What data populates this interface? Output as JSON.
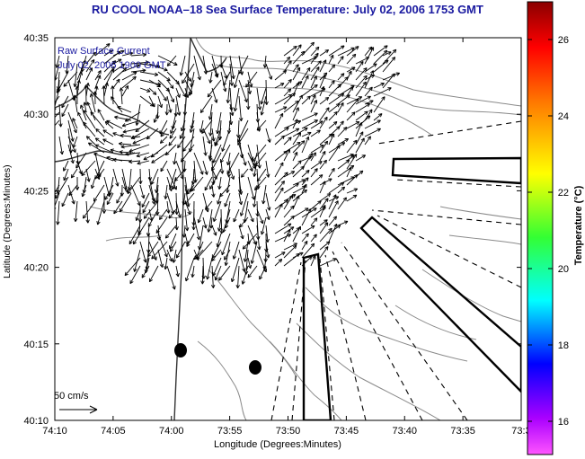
{
  "title": "RU COOL  NOAA–18  Sea Surface Temperature:  July 02, 2006 1753 GMT",
  "legend": {
    "line1": "Raw Surface Current",
    "line2": "July 02, 2006 1900 GMT"
  },
  "scale_label": "50 cm/s",
  "axes": {
    "xlabel": "Longitude (Degrees:Minutes)",
    "ylabel": "Latitude (Degrees:Minutes)",
    "xticks": [
      "74:10",
      "74:05",
      "74:00",
      "73:55",
      "73:50",
      "73:45",
      "73:40",
      "73:35",
      "73:3"
    ],
    "yticks": [
      "40:35",
      "40:30",
      "40:25",
      "40:20",
      "40:15",
      "40:10"
    ]
  },
  "colorbar": {
    "label": "Temperature (°C)",
    "ticks": [
      "26",
      "24",
      "22",
      "20",
      "18",
      "16"
    ]
  },
  "colors": {
    "title": "#1a1aa0",
    "frame": "#000000",
    "contour": "#8a8a8a"
  }
}
